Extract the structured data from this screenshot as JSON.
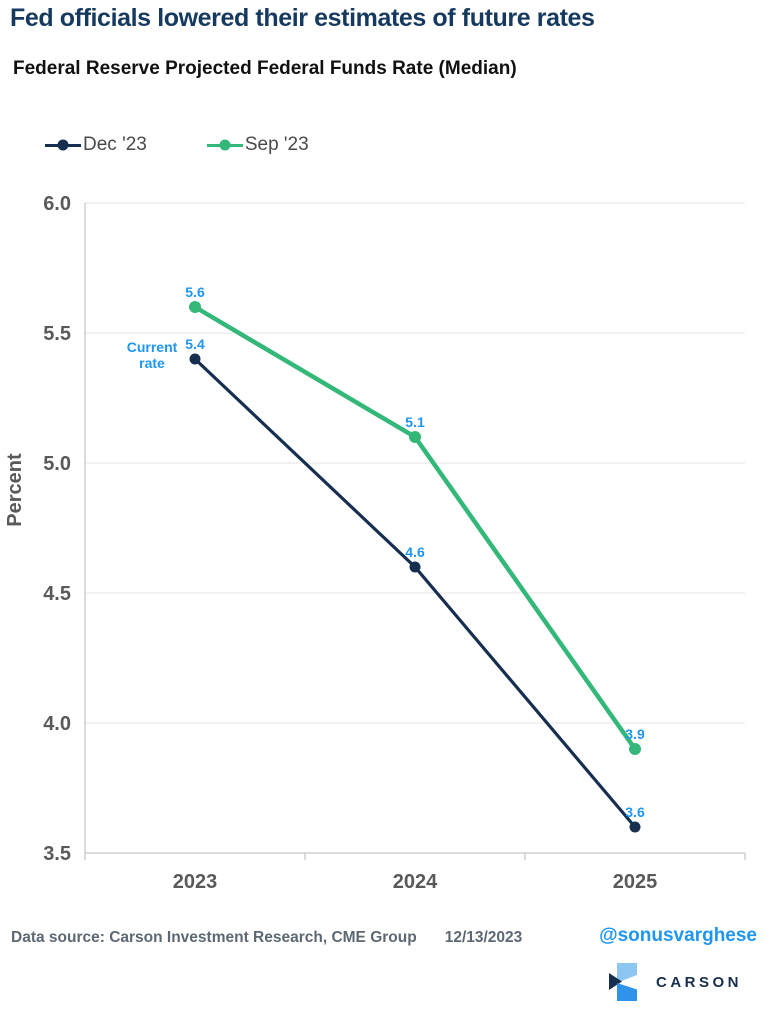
{
  "header": {
    "title": "Fed officials lowered their estimates of future rates",
    "subtitle": "Federal Reserve Projected Federal Funds Rate (Median)"
  },
  "chart_data": {
    "type": "line",
    "categories": [
      "2023",
      "2024",
      "2025"
    ],
    "series": [
      {
        "name": "Dec '23",
        "color": "#162f4e",
        "width": 3.2,
        "marker_radius": 5.5,
        "values": [
          5.4,
          4.6,
          3.6
        ]
      },
      {
        "name": "Sep '23",
        "color": "#34b87a",
        "width": 4.5,
        "marker_radius": 6,
        "values": [
          5.6,
          5.1,
          3.9
        ]
      }
    ],
    "title": "Federal Reserve Projected Federal Funds Rate (Median)",
    "xlabel": "",
    "ylabel": "Percent",
    "ylim": [
      3.5,
      6.0
    ],
    "yticks": [
      "3.5",
      "4.0",
      "4.5",
      "5.0",
      "5.5",
      "6.0"
    ],
    "grid": "horizontal",
    "legend_position": "top-left",
    "data_label_color": "#1e96f2",
    "grid_color": "#e4e4e4",
    "axis_color": "#ccd0d4",
    "annotation": {
      "lines": [
        "Current",
        "rate"
      ],
      "series": 0,
      "point": 0
    }
  },
  "footer": {
    "source": "Data source: Carson Investment Research, CME Group",
    "date": "12/13/2023",
    "handle": "@sonusvarghese",
    "logo_text": "CARSON"
  },
  "colors": {
    "title_navy": "#163a5f",
    "brand_navy": "#162f4e",
    "logo_light_blue": "#8ec6f2",
    "logo_mid_blue": "#2f93ea",
    "accent_blue": "#1e96f2",
    "green": "#34b87a",
    "axis_text_gray": "#595959",
    "footer_gray": "#5d6874"
  }
}
